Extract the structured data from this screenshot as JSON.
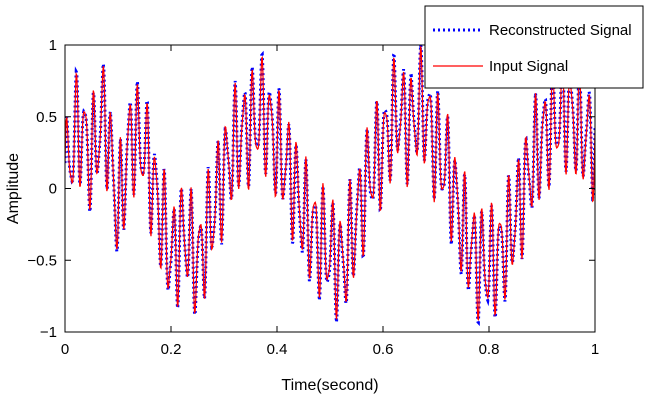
{
  "chart_data": {
    "type": "line",
    "xlabel": "Time(second)",
    "ylabel": "Amplitude",
    "xlim": [
      0,
      1
    ],
    "ylim": [
      -1,
      1
    ],
    "x_ticks": [
      0,
      0.2,
      0.4,
      0.6,
      0.8,
      1
    ],
    "x_tick_labels": [
      "0",
      "0.2",
      "0.4",
      "0.6",
      "0.8",
      "1"
    ],
    "y_ticks": [
      -1,
      -0.5,
      0,
      0.5,
      1
    ],
    "y_tick_labels": [
      "−1",
      "−0.5",
      "0",
      "0.5",
      "1"
    ],
    "grid": false,
    "legend_position": "top-right",
    "series": [
      {
        "name": "Reconstructed Signal",
        "color": "#0000ff",
        "style": "dotted",
        "x": [
          0,
          0.025,
          0.05,
          0.075,
          0.1,
          0.125,
          0.15,
          0.175,
          0.2,
          0.225,
          0.25,
          0.275,
          0.3,
          0.325,
          0.35,
          0.375,
          0.4,
          0.425,
          0.45,
          0.475,
          0.5,
          0.525,
          0.55,
          0.575,
          0.6,
          0.625,
          0.65,
          0.675,
          0.7,
          0.725,
          0.75,
          0.775,
          0.8,
          0.825,
          0.85,
          0.875,
          0.9,
          0.925,
          0.95,
          0.975,
          1
        ],
        "y": [
          0.1,
          0.45,
          0.2,
          0.55,
          -0.2,
          0.4,
          0.3,
          -0.1,
          -0.5,
          -0.3,
          -0.55,
          -0.2,
          0.1,
          0.35,
          0.45,
          0.55,
          0.3,
          0.1,
          -0.2,
          -0.35,
          -0.45,
          -0.55,
          -0.2,
          0.1,
          0.3,
          0.55,
          0.45,
          0.6,
          0.3,
          0.1,
          -0.3,
          -0.5,
          -0.55,
          -0.45,
          -0.2,
          0.1,
          0.35,
          0.5,
          0.55,
          0.4,
          0.35
        ]
      },
      {
        "name": "Input Signal",
        "color": "#ff0000",
        "style": "solid",
        "x": [
          0,
          0.025,
          0.05,
          0.075,
          0.1,
          0.125,
          0.15,
          0.175,
          0.2,
          0.225,
          0.25,
          0.275,
          0.3,
          0.325,
          0.35,
          0.375,
          0.4,
          0.425,
          0.45,
          0.475,
          0.5,
          0.525,
          0.55,
          0.575,
          0.6,
          0.625,
          0.65,
          0.675,
          0.7,
          0.725,
          0.75,
          0.775,
          0.8,
          0.825,
          0.85,
          0.875,
          0.9,
          0.925,
          0.95,
          0.975,
          1
        ],
        "y": [
          0.1,
          0.43,
          0.22,
          0.53,
          -0.18,
          0.38,
          0.28,
          -0.12,
          -0.48,
          -0.3,
          -0.53,
          -0.22,
          0.12,
          0.33,
          0.43,
          0.53,
          0.28,
          0.12,
          -0.18,
          -0.33,
          -0.43,
          -0.53,
          -0.22,
          0.12,
          0.28,
          0.53,
          0.43,
          0.58,
          0.28,
          0.12,
          -0.28,
          -0.48,
          -0.53,
          -0.43,
          -0.22,
          0.12,
          0.33,
          0.48,
          0.53,
          0.38,
          0.33
        ]
      }
    ]
  }
}
